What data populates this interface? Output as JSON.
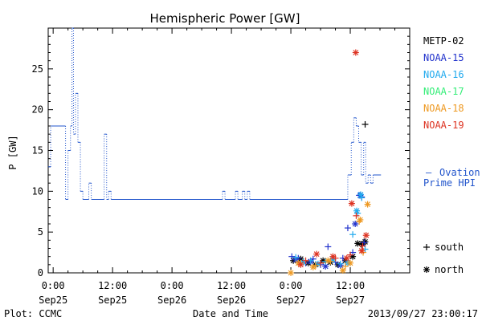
{
  "chart_data": {
    "type": "line",
    "title": "Hemispheric Power [GW]",
    "ylabel": "P [GW]",
    "xlabel": "Date and Time",
    "ylim": [
      0,
      30
    ],
    "xlim_hours": [
      -1,
      72
    ],
    "x_units": "hours after 2013-09-25 00:00 UT",
    "yticks": [
      0,
      5,
      10,
      15,
      20,
      25
    ],
    "xticks": [
      {
        "x": 0,
        "top": "0:00",
        "bottom": "Sep25"
      },
      {
        "x": 12,
        "top": "12:00",
        "bottom": "Sep25"
      },
      {
        "x": 24,
        "top": "0:00",
        "bottom": "Sep26"
      },
      {
        "x": 36,
        "top": "12:00",
        "bottom": "Sep26"
      },
      {
        "x": 48,
        "top": "0:00",
        "bottom": "Sep27"
      },
      {
        "x": 60,
        "top": "12:00",
        "bottom": "Sep27"
      }
    ],
    "ovation": {
      "name": "Ovation Prime HPI",
      "label_line1": "Ovation",
      "label_line2": "Prime HPI",
      "dash": "—",
      "color": "#2255cc",
      "points": [
        [
          -1,
          13
        ],
        [
          -0.5,
          13
        ],
        [
          -0.5,
          18
        ],
        [
          2.5,
          18
        ],
        [
          2.5,
          9
        ],
        [
          3,
          9
        ],
        [
          3,
          15
        ],
        [
          3.5,
          15
        ],
        [
          3.5,
          18
        ],
        [
          3.8,
          18
        ],
        [
          3.8,
          30
        ],
        [
          4.1,
          30
        ],
        [
          4.1,
          17
        ],
        [
          4.5,
          17
        ],
        [
          4.5,
          22
        ],
        [
          5,
          22
        ],
        [
          5,
          16
        ],
        [
          5.5,
          16
        ],
        [
          5.5,
          10
        ],
        [
          6,
          10
        ],
        [
          6,
          9
        ],
        [
          7.2,
          9
        ],
        [
          7.2,
          11
        ],
        [
          7.7,
          11
        ],
        [
          7.7,
          9
        ],
        [
          10.3,
          9
        ],
        [
          10.3,
          17
        ],
        [
          10.8,
          17
        ],
        [
          10.8,
          9
        ],
        [
          11.2,
          9
        ],
        [
          11.2,
          10
        ],
        [
          11.7,
          10
        ],
        [
          11.7,
          9
        ],
        [
          34.2,
          9
        ],
        [
          34.2,
          10
        ],
        [
          34.7,
          10
        ],
        [
          34.7,
          9
        ],
        [
          36.8,
          9
        ],
        [
          36.8,
          10
        ],
        [
          37.3,
          10
        ],
        [
          37.3,
          9
        ],
        [
          38.2,
          9
        ],
        [
          38.2,
          10
        ],
        [
          38.7,
          10
        ],
        [
          38.7,
          9
        ],
        [
          39.2,
          9
        ],
        [
          39.2,
          10
        ],
        [
          39.7,
          10
        ],
        [
          39.7,
          9
        ],
        [
          59.5,
          9
        ],
        [
          59.5,
          12
        ],
        [
          60.2,
          12
        ],
        [
          60.2,
          16
        ],
        [
          60.7,
          16
        ],
        [
          60.7,
          19
        ],
        [
          61.2,
          19
        ],
        [
          61.2,
          18
        ],
        [
          61.7,
          18
        ],
        [
          61.7,
          16
        ],
        [
          62.2,
          16
        ],
        [
          62.2,
          12
        ],
        [
          62.7,
          12
        ],
        [
          62.7,
          16
        ],
        [
          63.1,
          16
        ],
        [
          63.1,
          11
        ],
        [
          63.6,
          11
        ],
        [
          63.6,
          12
        ],
        [
          64.1,
          12
        ],
        [
          64.1,
          11
        ],
        [
          64.6,
          11
        ],
        [
          64.6,
          12
        ],
        [
          66.2,
          12
        ]
      ]
    },
    "legend": [
      {
        "name": "METP-02",
        "color": "#000000"
      },
      {
        "name": "NOAA-15",
        "color": "#2233cc"
      },
      {
        "name": "NOAA-16",
        "color": "#22aaee"
      },
      {
        "name": "NOAA-17",
        "color": "#33ee77"
      },
      {
        "name": "NOAA-18",
        "color": "#ee9922"
      },
      {
        "name": "NOAA-19",
        "color": "#dd3322"
      }
    ],
    "marker_legend": [
      {
        "symbol": "+",
        "label": "south"
      },
      {
        "symbol": "*",
        "label": "north"
      }
    ],
    "series": [
      {
        "name": "METP-02",
        "marker": "+",
        "points": [
          [
            63.0,
            18.2
          ],
          [
            62.2,
            3.5
          ],
          [
            62.8,
            3.8
          ]
        ]
      },
      {
        "name": "METP-02",
        "marker": "*",
        "points": [
          [
            48.5,
            1.5
          ],
          [
            50.0,
            1.7
          ],
          [
            51.5,
            1.2
          ],
          [
            53.0,
            1.0
          ],
          [
            54.5,
            1.5
          ],
          [
            56.0,
            1.3
          ],
          [
            57.5,
            1.0
          ],
          [
            59.0,
            1.5
          ],
          [
            60.5,
            2.0
          ],
          [
            61.5,
            3.6
          ],
          [
            62.5,
            3.5
          ],
          [
            63.0,
            3.8
          ]
        ]
      },
      {
        "name": "NOAA-15",
        "marker": "+",
        "points": [
          [
            48.2,
            2.0
          ],
          [
            49.5,
            1.8
          ],
          [
            51.0,
            1.2
          ],
          [
            52.5,
            1.7
          ],
          [
            54.0,
            1.0
          ],
          [
            55.5,
            3.2
          ],
          [
            57.0,
            1.3
          ],
          [
            58.5,
            1.8
          ],
          [
            59.5,
            5.5
          ],
          [
            60.5,
            2.5
          ],
          [
            61.8,
            9.5
          ],
          [
            62.3,
            9.3
          ],
          [
            62.8,
            3.7
          ]
        ]
      },
      {
        "name": "NOAA-15",
        "marker": "*",
        "points": [
          [
            49.0,
            1.6
          ],
          [
            52.0,
            1.4
          ],
          [
            55.0,
            0.8
          ],
          [
            58.0,
            0.9
          ],
          [
            61.0,
            6.0
          ],
          [
            62.0,
            9.5
          ]
        ]
      },
      {
        "name": "NOAA-16",
        "marker": "+",
        "points": [
          [
            49.0,
            1.9
          ],
          [
            52.0,
            1.5
          ],
          [
            55.0,
            1.4
          ],
          [
            58.0,
            1.1
          ],
          [
            60.5,
            4.7
          ],
          [
            61.5,
            7.3
          ],
          [
            62.3,
            9.2
          ],
          [
            63.0,
            2.9
          ]
        ]
      },
      {
        "name": "NOAA-16",
        "marker": "*",
        "points": [
          [
            50.5,
            1.3
          ],
          [
            53.5,
            1.1
          ],
          [
            56.5,
            1.6
          ],
          [
            59.5,
            1.2
          ],
          [
            61.3,
            7.6
          ],
          [
            62.1,
            9.6
          ]
        ]
      },
      {
        "name": "NOAA-18",
        "marker": "+",
        "points": [
          [
            50.0,
            1.2
          ],
          [
            53.0,
            0.9
          ],
          [
            56.0,
            1.4
          ],
          [
            59.0,
            0.8
          ],
          [
            61.8,
            6.3
          ],
          [
            62.6,
            2.5
          ]
        ]
      },
      {
        "name": "NOAA-18",
        "marker": "*",
        "points": [
          [
            48.0,
            0.0
          ],
          [
            49.5,
            1.2
          ],
          [
            52.5,
            0.7
          ],
          [
            55.5,
            1.5
          ],
          [
            58.5,
            0.3
          ],
          [
            60.0,
            1.2
          ],
          [
            62.0,
            6.5
          ],
          [
            63.5,
            8.4
          ]
        ]
      },
      {
        "name": "NOAA-19",
        "marker": "+",
        "points": [
          [
            51.0,
            1.5
          ],
          [
            54.0,
            1.2
          ],
          [
            57.0,
            1.8
          ],
          [
            60.0,
            2.2
          ],
          [
            61.2,
            7.0
          ],
          [
            62.5,
            3.3
          ]
        ]
      },
      {
        "name": "NOAA-19",
        "marker": "*",
        "points": [
          [
            50.0,
            1.0
          ],
          [
            53.2,
            2.3
          ],
          [
            56.5,
            2.0
          ],
          [
            59.3,
            1.8
          ],
          [
            60.3,
            8.5
          ],
          [
            61.1,
            27.0
          ],
          [
            62.3,
            2.7
          ],
          [
            63.2,
            4.6
          ]
        ]
      }
    ]
  },
  "footer": {
    "plot_credit": "Plot: CCMC",
    "timestamp": "2013/09/27 23:00:17"
  }
}
